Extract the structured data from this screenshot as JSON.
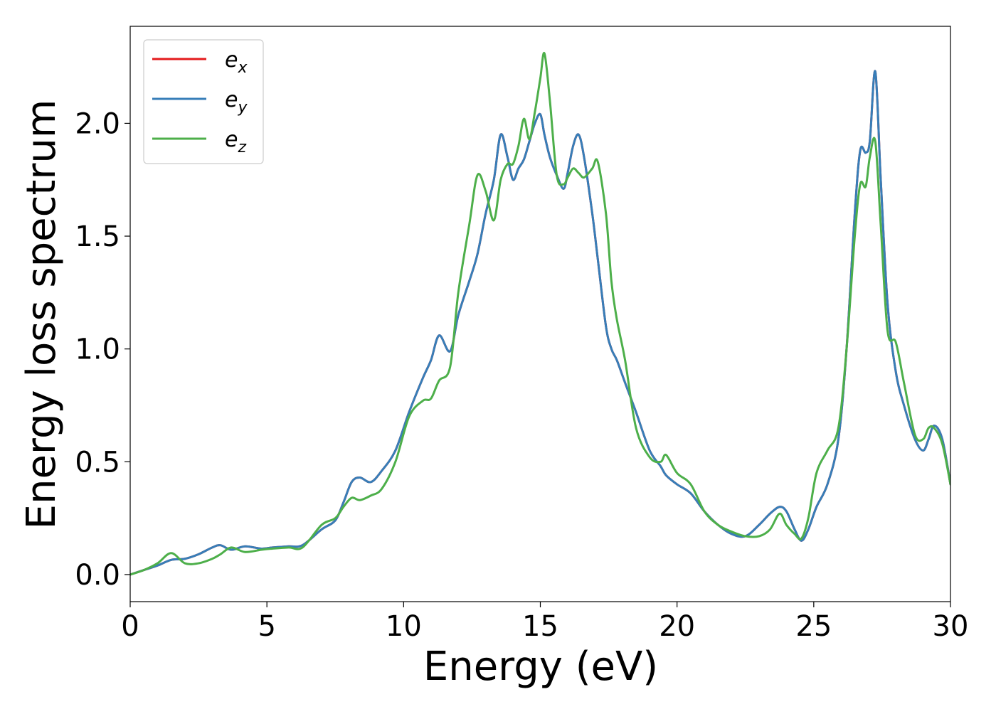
{
  "chart_data": {
    "type": "line",
    "title": "",
    "xlabel": "Energy (eV)",
    "ylabel": "Energy loss spectrum",
    "xlim": [
      0,
      30
    ],
    "ylim": [
      -0.12,
      2.43
    ],
    "xticks": [
      0,
      5,
      10,
      15,
      20,
      25,
      30
    ],
    "yticks": [
      0.0,
      0.5,
      1.0,
      1.5,
      2.0
    ],
    "xtick_labels": [
      "0",
      "5",
      "10",
      "15",
      "20",
      "25",
      "30"
    ],
    "ytick_labels": [
      "0.0",
      "0.5",
      "1.0",
      "1.5",
      "2.0"
    ],
    "grid": false,
    "legend_position": "top-left",
    "legend": [
      {
        "base": "e",
        "sub": "x",
        "color": "#e41a1c"
      },
      {
        "base": "e",
        "sub": "y",
        "color": "#377eb8"
      },
      {
        "base": "e",
        "sub": "z",
        "color": "#4daf4a"
      }
    ],
    "x": [
      0,
      0.5,
      1.0,
      1.5,
      2.0,
      2.5,
      3.0,
      3.3,
      3.7,
      4.2,
      4.8,
      5.2,
      5.8,
      6.3,
      7.0,
      7.5,
      7.8,
      8.1,
      8.4,
      8.8,
      9.2,
      9.7,
      10.2,
      10.7,
      11.0,
      11.3,
      11.7,
      12.0,
      12.4,
      12.7,
      13.0,
      13.3,
      13.55,
      13.8,
      14.0,
      14.2,
      14.4,
      14.6,
      14.8,
      15.0,
      15.15,
      15.35,
      15.6,
      15.85,
      16.0,
      16.2,
      16.4,
      16.6,
      16.9,
      17.1,
      17.4,
      17.6,
      17.8,
      18.1,
      18.5,
      19.0,
      19.4,
      19.6,
      20.0,
      20.5,
      21.0,
      21.5,
      22.0,
      22.5,
      23.0,
      23.4,
      23.75,
      24.0,
      24.3,
      24.55,
      24.8,
      25.1,
      25.5,
      25.9,
      26.2,
      26.5,
      26.7,
      26.9,
      27.05,
      27.25,
      27.45,
      27.7,
      28.0,
      28.3,
      28.7,
      29.0,
      29.2,
      29.4,
      29.7,
      30.0
    ],
    "series": [
      {
        "name": "e_x",
        "color": "#e41a1c",
        "values": [
          0.0,
          0.02,
          0.04,
          0.065,
          0.07,
          0.09,
          0.12,
          0.13,
          0.11,
          0.125,
          0.115,
          0.12,
          0.125,
          0.13,
          0.2,
          0.24,
          0.32,
          0.41,
          0.43,
          0.41,
          0.46,
          0.55,
          0.72,
          0.87,
          0.95,
          1.06,
          0.99,
          1.15,
          1.3,
          1.42,
          1.6,
          1.75,
          1.95,
          1.85,
          1.75,
          1.8,
          1.84,
          1.92,
          2.0,
          2.04,
          1.95,
          1.85,
          1.77,
          1.71,
          1.78,
          1.9,
          1.95,
          1.85,
          1.6,
          1.4,
          1.1,
          1.0,
          0.95,
          0.85,
          0.72,
          0.55,
          0.48,
          0.44,
          0.4,
          0.36,
          0.28,
          0.22,
          0.18,
          0.17,
          0.22,
          0.27,
          0.3,
          0.28,
          0.2,
          0.15,
          0.2,
          0.3,
          0.4,
          0.6,
          1.0,
          1.6,
          1.88,
          1.87,
          1.92,
          2.23,
          1.75,
          1.2,
          0.9,
          0.75,
          0.6,
          0.55,
          0.6,
          0.66,
          0.6,
          0.4
        ]
      },
      {
        "name": "e_y",
        "color": "#377eb8",
        "values": [
          0.0,
          0.02,
          0.04,
          0.065,
          0.07,
          0.09,
          0.12,
          0.13,
          0.11,
          0.125,
          0.115,
          0.12,
          0.125,
          0.13,
          0.2,
          0.24,
          0.32,
          0.41,
          0.43,
          0.41,
          0.46,
          0.55,
          0.72,
          0.87,
          0.95,
          1.06,
          0.99,
          1.15,
          1.3,
          1.42,
          1.6,
          1.75,
          1.95,
          1.85,
          1.75,
          1.8,
          1.84,
          1.92,
          2.0,
          2.04,
          1.95,
          1.85,
          1.77,
          1.71,
          1.78,
          1.9,
          1.95,
          1.85,
          1.6,
          1.4,
          1.1,
          1.0,
          0.95,
          0.85,
          0.72,
          0.55,
          0.48,
          0.44,
          0.4,
          0.36,
          0.28,
          0.22,
          0.18,
          0.17,
          0.22,
          0.27,
          0.3,
          0.28,
          0.2,
          0.15,
          0.2,
          0.3,
          0.4,
          0.6,
          1.0,
          1.6,
          1.88,
          1.87,
          1.92,
          2.23,
          1.75,
          1.2,
          0.9,
          0.75,
          0.6,
          0.55,
          0.6,
          0.66,
          0.6,
          0.4
        ]
      },
      {
        "name": "e_z",
        "color": "#4daf4a",
        "values": [
          0.0,
          0.02,
          0.05,
          0.095,
          0.05,
          0.05,
          0.07,
          0.09,
          0.12,
          0.1,
          0.11,
          0.115,
          0.12,
          0.12,
          0.22,
          0.25,
          0.3,
          0.34,
          0.33,
          0.35,
          0.38,
          0.5,
          0.7,
          0.77,
          0.78,
          0.86,
          0.92,
          1.25,
          1.55,
          1.77,
          1.7,
          1.57,
          1.75,
          1.82,
          1.82,
          1.9,
          2.02,
          1.93,
          2.05,
          2.2,
          2.31,
          2.1,
          1.77,
          1.73,
          1.76,
          1.8,
          1.78,
          1.76,
          1.8,
          1.83,
          1.6,
          1.3,
          1.13,
          0.95,
          0.65,
          0.52,
          0.5,
          0.53,
          0.45,
          0.4,
          0.28,
          0.22,
          0.19,
          0.17,
          0.17,
          0.2,
          0.27,
          0.22,
          0.18,
          0.16,
          0.25,
          0.45,
          0.55,
          0.65,
          1.0,
          1.5,
          1.73,
          1.72,
          1.85,
          1.92,
          1.55,
          1.08,
          1.03,
          0.85,
          0.62,
          0.6,
          0.65,
          0.65,
          0.58,
          0.4
        ]
      }
    ]
  }
}
